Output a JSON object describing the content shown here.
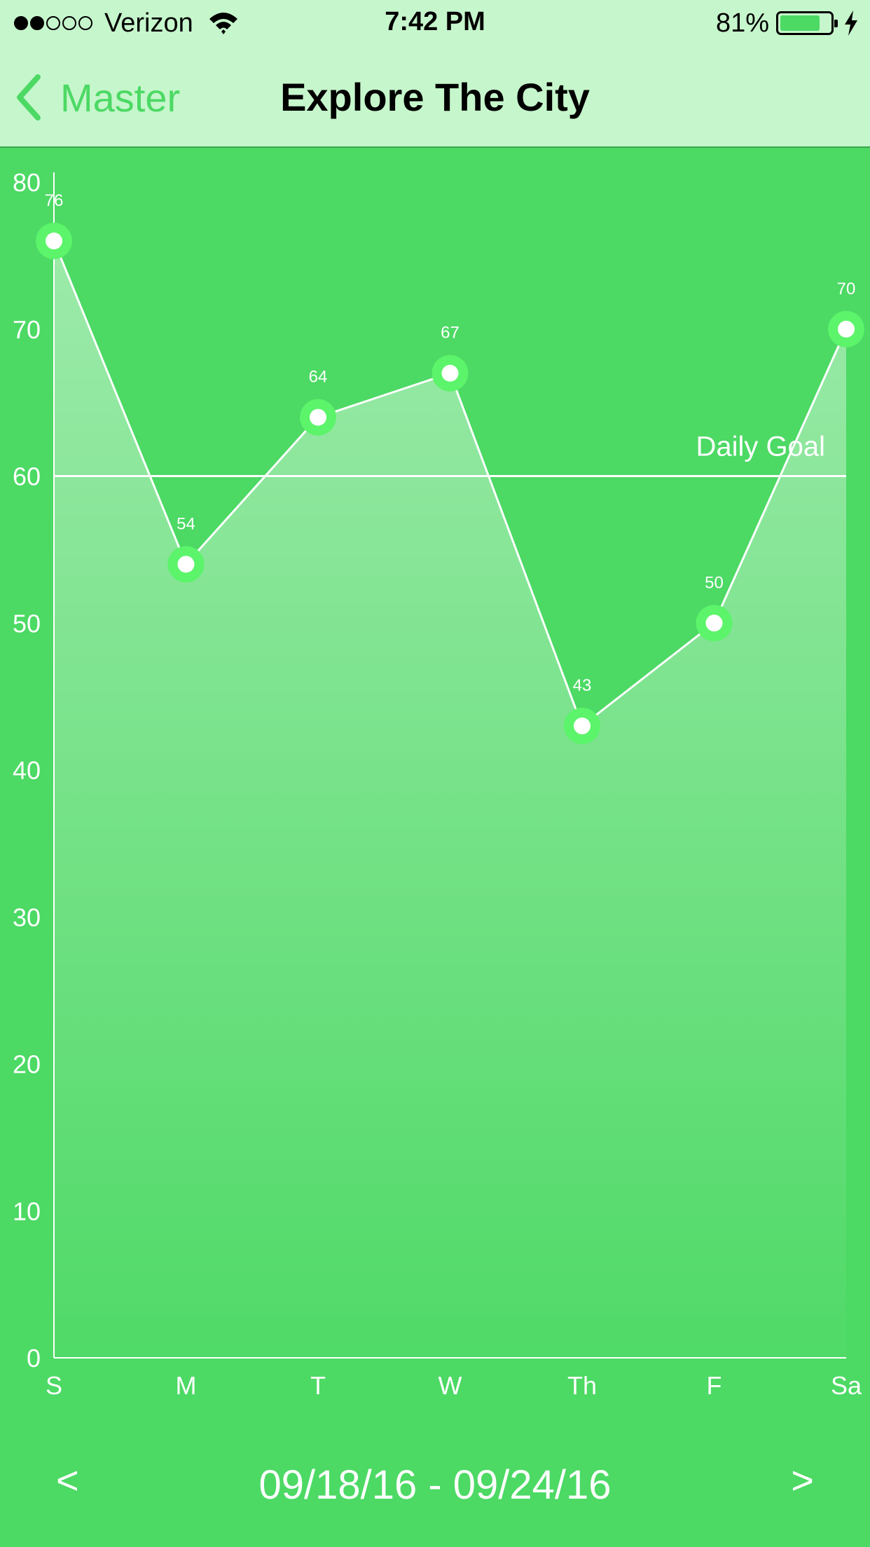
{
  "status_bar": {
    "carrier": "Verizon",
    "time": "7:42 PM",
    "battery_percent": "81%",
    "signal_bars_filled": 2,
    "signal_bars_total": 5,
    "battery_level": 0.81
  },
  "nav": {
    "back_label": "Master",
    "title": "Explore The City"
  },
  "chart_data": {
    "type": "line",
    "categories": [
      "S",
      "M",
      "T",
      "W",
      "Th",
      "F",
      "Sa"
    ],
    "values": [
      76,
      54,
      64,
      67,
      43,
      50,
      70
    ],
    "ylim": [
      0,
      80
    ],
    "yticks": [
      0,
      10,
      20,
      30,
      40,
      50,
      60,
      70,
      80
    ],
    "goal_value": 60,
    "goal_label": "Daily Goal",
    "data_labels": true,
    "area_fill": true,
    "colors": {
      "background": "#4cd964",
      "line": "#ffffff",
      "marker_ring": "#5cf46a",
      "marker_center": "#ffffff"
    }
  },
  "footer": {
    "prev_label": "<",
    "next_label": ">",
    "date_range": "09/18/16 - 09/24/16"
  },
  "colors": {
    "nav_background": "#c6f6cc",
    "accent": "#4cd964"
  }
}
